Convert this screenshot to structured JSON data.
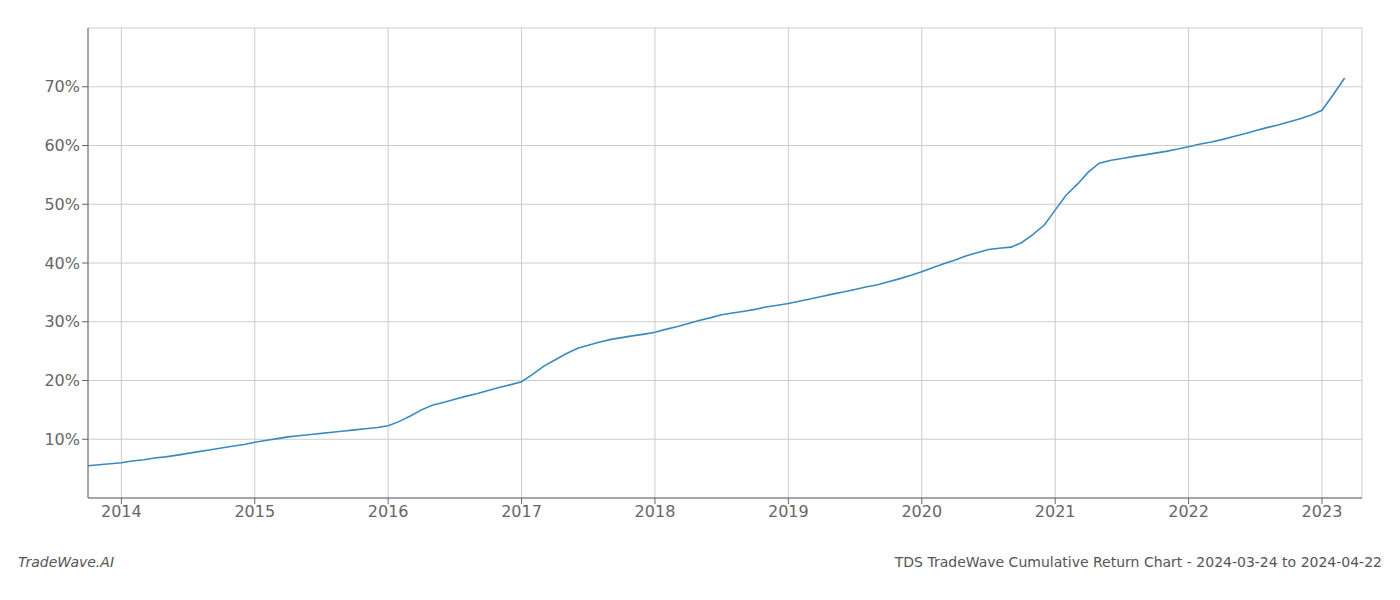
{
  "chart_data": {
    "type": "line",
    "title": "TDS TradeWave Cumulative Return Chart - 2024-03-24 to 2024-04-22",
    "annotations": [
      "TradeWave.AI"
    ],
    "color": "#3a8abf",
    "grid": true,
    "x": [
      2013.75,
      2014.0,
      2014.08,
      2014.17,
      2014.25,
      2014.33,
      2014.42,
      2014.5,
      2014.58,
      2014.67,
      2014.75,
      2014.83,
      2014.92,
      2015.0,
      2015.08,
      2015.17,
      2015.25,
      2015.33,
      2015.42,
      2015.5,
      2015.58,
      2015.67,
      2015.75,
      2015.83,
      2015.92,
      2016.0,
      2016.08,
      2016.17,
      2016.25,
      2016.33,
      2016.42,
      2016.5,
      2016.58,
      2016.67,
      2016.75,
      2016.83,
      2016.92,
      2017.0,
      2017.08,
      2017.17,
      2017.25,
      2017.33,
      2017.42,
      2017.5,
      2017.58,
      2017.67,
      2017.75,
      2017.83,
      2017.92,
      2018.0,
      2018.08,
      2018.17,
      2018.25,
      2018.33,
      2018.42,
      2018.5,
      2018.58,
      2018.67,
      2018.75,
      2018.83,
      2018.92,
      2019.0,
      2019.08,
      2019.17,
      2019.25,
      2019.33,
      2019.42,
      2019.5,
      2019.58,
      2019.67,
      2019.75,
      2019.83,
      2019.92,
      2020.0,
      2020.08,
      2020.17,
      2020.25,
      2020.33,
      2020.42,
      2020.5,
      2020.58,
      2020.67,
      2020.75,
      2020.83,
      2020.92,
      2021.0,
      2021.08,
      2021.17,
      2021.25,
      2021.33,
      2021.42,
      2021.5,
      2021.58,
      2021.67,
      2021.75,
      2021.83,
      2021.92,
      2022.0,
      2022.08,
      2022.17,
      2022.25,
      2022.33,
      2022.42,
      2022.5,
      2022.58,
      2022.67,
      2022.75,
      2022.83,
      2022.92,
      2023.0,
      2023.08,
      2023.17
    ],
    "values": [
      5.5,
      6.0,
      6.3,
      6.5,
      6.8,
      7.0,
      7.3,
      7.6,
      7.9,
      8.2,
      8.5,
      8.8,
      9.1,
      9.5,
      9.8,
      10.1,
      10.4,
      10.6,
      10.8,
      11.0,
      11.2,
      11.4,
      11.6,
      11.8,
      12.0,
      12.3,
      13.0,
      14.0,
      15.0,
      15.8,
      16.3,
      16.8,
      17.3,
      17.8,
      18.3,
      18.8,
      19.3,
      19.8,
      21.0,
      22.5,
      23.5,
      24.5,
      25.5,
      26.0,
      26.5,
      27.0,
      27.3,
      27.6,
      27.9,
      28.2,
      28.7,
      29.2,
      29.7,
      30.2,
      30.7,
      31.2,
      31.5,
      31.8,
      32.1,
      32.5,
      32.8,
      33.1,
      33.5,
      33.9,
      34.3,
      34.7,
      35.1,
      35.5,
      35.9,
      36.3,
      36.8,
      37.3,
      37.9,
      38.5,
      39.2,
      39.9,
      40.5,
      41.2,
      41.8,
      42.3,
      42.5,
      42.7,
      43.5,
      44.8,
      46.5,
      49.0,
      51.5,
      53.5,
      55.5,
      57.0,
      57.5,
      57.8,
      58.1,
      58.4,
      58.7,
      59.0,
      59.4,
      59.8,
      60.2,
      60.6,
      61.0,
      61.5,
      62.0,
      62.5,
      63.0,
      63.5,
      64.0,
      64.5,
      65.2,
      66.0,
      68.5,
      71.5
    ],
    "xlim": [
      2013.75,
      2023.3
    ],
    "ylim": [
      0,
      80
    ],
    "xticks": [
      2014,
      2015,
      2016,
      2017,
      2018,
      2019,
      2020,
      2021,
      2022,
      2023
    ],
    "yticks": [
      {
        "value": 10,
        "label": "10%"
      },
      {
        "value": 20,
        "label": "20%"
      },
      {
        "value": 30,
        "label": "30%"
      },
      {
        "value": 40,
        "label": "40%"
      },
      {
        "value": 50,
        "label": "50%"
      },
      {
        "value": 60,
        "label": "60%"
      },
      {
        "value": 70,
        "label": "70%"
      }
    ]
  }
}
